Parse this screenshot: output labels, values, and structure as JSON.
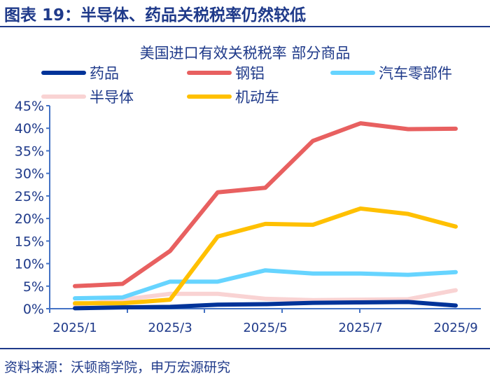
{
  "figure_title": "图表 19：半导体、药品关税税率仍然较低",
  "source": "资料来源：沃顿商学院，申万宏源研究",
  "chart_data": {
    "type": "line",
    "title": "美国进口有效关税税率 部分商品",
    "categories": [
      "2025/1",
      "2025/2",
      "2025/3",
      "2025/4",
      "2025/5",
      "2025/6",
      "2025/7",
      "2025/8",
      "2025/9"
    ],
    "tick_labels": [
      "2025/1",
      "2025/3",
      "2025/5",
      "2025/7",
      "2025/9"
    ],
    "ylim": [
      0,
      45
    ],
    "yticks": [
      "0%",
      "5%",
      "10%",
      "15%",
      "20%",
      "25%",
      "30%",
      "35%",
      "40%",
      "45%"
    ],
    "legend_position": "top",
    "series": [
      {
        "name": "药品",
        "color": "#003399",
        "values": [
          0.1,
          0.3,
          0.4,
          0.9,
          1.0,
          1.3,
          1.4,
          1.5,
          0.7
        ]
      },
      {
        "name": "钢铝",
        "color": "#e86060",
        "values": [
          5.0,
          5.5,
          12.8,
          25.8,
          26.8,
          37.2,
          41.1,
          39.8,
          39.9
        ]
      },
      {
        "name": "汽车零部件",
        "color": "#66d4ff",
        "values": [
          2.3,
          2.5,
          6.0,
          6.0,
          8.5,
          7.8,
          7.8,
          7.5,
          8.1
        ]
      },
      {
        "name": "半导体",
        "color": "#f9d3d3",
        "values": [
          0.8,
          2.0,
          3.3,
          3.3,
          2.2,
          1.9,
          2.0,
          2.1,
          4.1
        ]
      },
      {
        "name": "机动车",
        "color": "#ffc000",
        "values": [
          1.2,
          1.2,
          2.0,
          16.0,
          18.8,
          18.6,
          22.2,
          21.0,
          18.2
        ]
      }
    ]
  }
}
